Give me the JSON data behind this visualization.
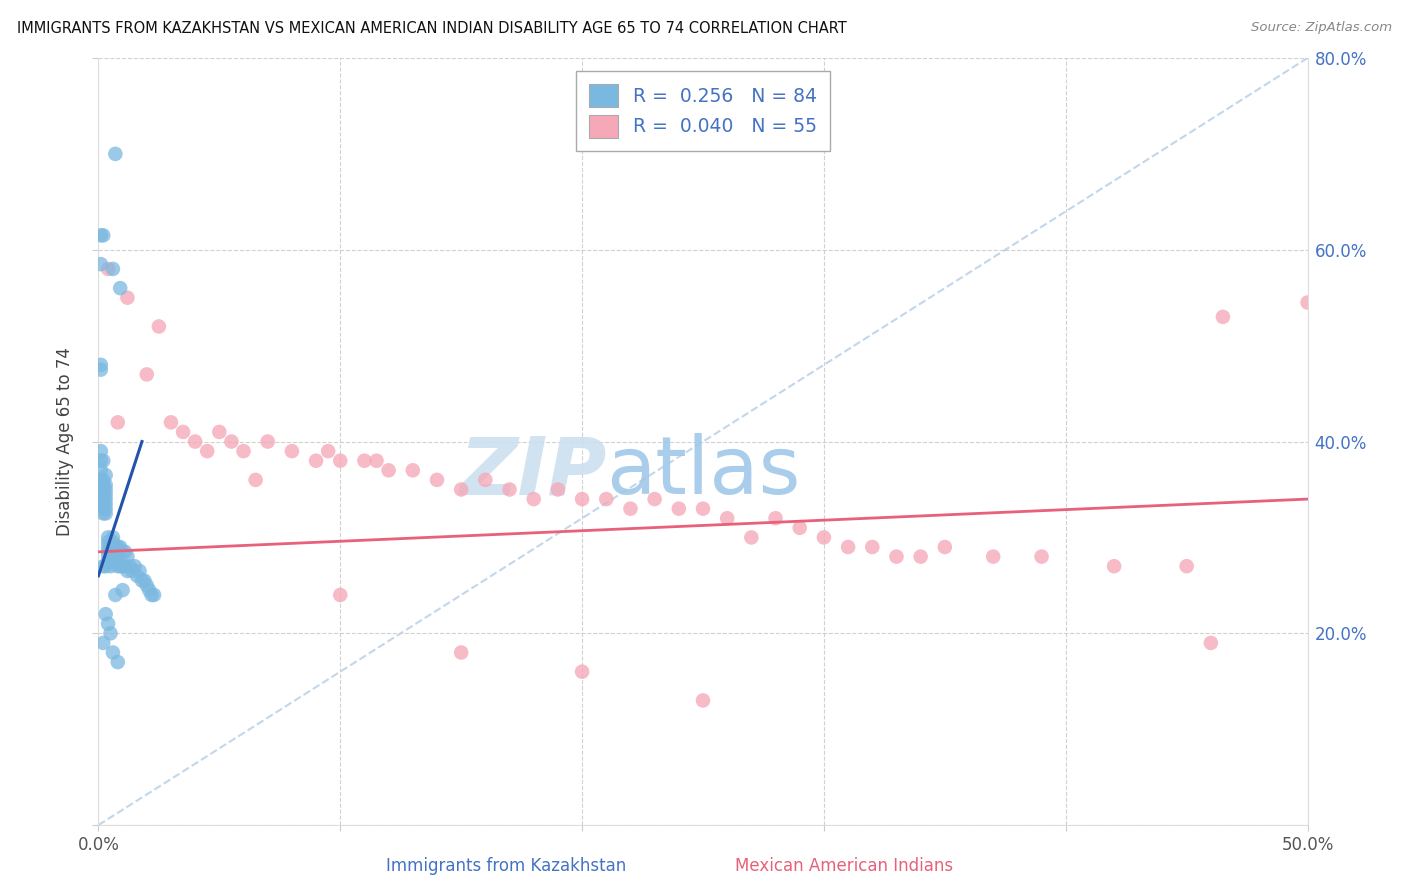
{
  "title": "IMMIGRANTS FROM KAZAKHSTAN VS MEXICAN AMERICAN INDIAN DISABILITY AGE 65 TO 74 CORRELATION CHART",
  "source": "Source: ZipAtlas.com",
  "ylabel": "Disability Age 65 to 74",
  "xlabel_blue": "Immigrants from Kazakhstan",
  "xlabel_pink": "Mexican American Indians",
  "xlim": [
    0.0,
    0.5
  ],
  "ylim": [
    0.0,
    0.8
  ],
  "R_blue": 0.256,
  "N_blue": 84,
  "R_pink": 0.04,
  "N_pink": 55,
  "blue_dot_color": "#7bb8e0",
  "pink_dot_color": "#f5a8b8",
  "regression_blue_color": "#2255aa",
  "regression_pink_color": "#e8607a",
  "diagonal_color": "#b8d0e8",
  "watermark_color": "#d8eaf7",
  "watermark_zip": "ZIP",
  "watermark_atlas": "atlas",
  "blue_x": [
    0.007,
    0.002,
    0.006,
    0.009,
    0.001,
    0.001,
    0.001,
    0.001,
    0.001,
    0.001,
    0.001,
    0.001,
    0.001,
    0.001,
    0.001,
    0.001,
    0.002,
    0.002,
    0.002,
    0.002,
    0.002,
    0.002,
    0.002,
    0.002,
    0.002,
    0.002,
    0.003,
    0.003,
    0.003,
    0.003,
    0.003,
    0.003,
    0.003,
    0.003,
    0.003,
    0.004,
    0.004,
    0.004,
    0.004,
    0.004,
    0.004,
    0.005,
    0.005,
    0.005,
    0.005,
    0.005,
    0.006,
    0.006,
    0.006,
    0.006,
    0.007,
    0.007,
    0.007,
    0.007,
    0.008,
    0.008,
    0.008,
    0.009,
    0.009,
    0.01,
    0.01,
    0.011,
    0.011,
    0.012,
    0.012,
    0.013,
    0.014,
    0.015,
    0.016,
    0.017,
    0.018,
    0.019,
    0.02,
    0.021,
    0.022,
    0.023,
    0.01,
    0.007,
    0.003,
    0.004,
    0.005,
    0.002,
    0.006,
    0.008
  ],
  "blue_y": [
    0.7,
    0.615,
    0.58,
    0.56,
    0.615,
    0.585,
    0.48,
    0.475,
    0.39,
    0.38,
    0.37,
    0.36,
    0.355,
    0.35,
    0.345,
    0.34,
    0.38,
    0.36,
    0.355,
    0.35,
    0.345,
    0.34,
    0.335,
    0.33,
    0.325,
    0.27,
    0.365,
    0.355,
    0.35,
    0.345,
    0.34,
    0.335,
    0.33,
    0.325,
    0.27,
    0.3,
    0.295,
    0.29,
    0.285,
    0.28,
    0.275,
    0.29,
    0.285,
    0.28,
    0.275,
    0.27,
    0.3,
    0.295,
    0.29,
    0.285,
    0.29,
    0.285,
    0.28,
    0.275,
    0.29,
    0.285,
    0.27,
    0.29,
    0.27,
    0.285,
    0.27,
    0.285,
    0.27,
    0.28,
    0.265,
    0.27,
    0.265,
    0.27,
    0.26,
    0.265,
    0.255,
    0.255,
    0.25,
    0.245,
    0.24,
    0.24,
    0.245,
    0.24,
    0.22,
    0.21,
    0.2,
    0.19,
    0.18,
    0.17
  ],
  "pink_x": [
    0.004,
    0.008,
    0.012,
    0.02,
    0.025,
    0.03,
    0.035,
    0.04,
    0.045,
    0.05,
    0.055,
    0.06,
    0.065,
    0.07,
    0.08,
    0.09,
    0.095,
    0.1,
    0.11,
    0.115,
    0.12,
    0.13,
    0.14,
    0.15,
    0.16,
    0.17,
    0.18,
    0.19,
    0.2,
    0.21,
    0.22,
    0.23,
    0.24,
    0.25,
    0.26,
    0.27,
    0.28,
    0.29,
    0.3,
    0.31,
    0.32,
    0.33,
    0.34,
    0.35,
    0.37,
    0.39,
    0.42,
    0.45,
    0.46,
    0.465,
    0.1,
    0.15,
    0.2,
    0.25,
    0.5
  ],
  "pink_y": [
    0.58,
    0.42,
    0.55,
    0.47,
    0.52,
    0.42,
    0.41,
    0.4,
    0.39,
    0.41,
    0.4,
    0.39,
    0.36,
    0.4,
    0.39,
    0.38,
    0.39,
    0.38,
    0.38,
    0.38,
    0.37,
    0.37,
    0.36,
    0.35,
    0.36,
    0.35,
    0.34,
    0.35,
    0.34,
    0.34,
    0.33,
    0.34,
    0.33,
    0.33,
    0.32,
    0.3,
    0.32,
    0.31,
    0.3,
    0.29,
    0.29,
    0.28,
    0.28,
    0.29,
    0.28,
    0.28,
    0.27,
    0.27,
    0.19,
    0.53,
    0.24,
    0.18,
    0.16,
    0.13,
    0.545
  ],
  "pink_regression_y0": 0.285,
  "pink_regression_y1": 0.34,
  "blue_regression_x0": 0.0,
  "blue_regression_y0": 0.26,
  "blue_regression_x1": 0.018,
  "blue_regression_y1": 0.4
}
